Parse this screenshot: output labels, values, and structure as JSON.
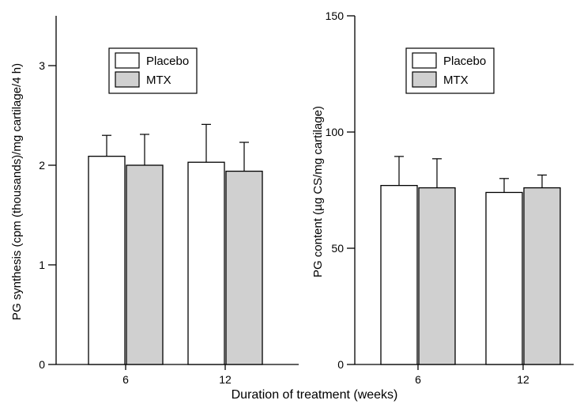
{
  "figure": {
    "xlabel": "Duration of treatment (weeks)"
  },
  "chart_data": [
    {
      "type": "bar",
      "title": "",
      "xlabel": "",
      "ylabel": "PG synthesis (cpm (thousands)/mg cartilage/4 h)",
      "categories": [
        "6",
        "12"
      ],
      "ylim": [
        0,
        3.5
      ],
      "yticks": [
        0,
        1,
        2,
        3
      ],
      "grid": false,
      "legend_position": "top-center",
      "series": [
        {
          "name": "Placebo",
          "color": "#ffffff",
          "values": [
            2.09,
            2.03
          ],
          "errors": [
            0.21,
            0.38
          ]
        },
        {
          "name": "MTX",
          "color": "#d0d0d0",
          "values": [
            2.0,
            1.94
          ],
          "errors": [
            0.31,
            0.29
          ]
        }
      ]
    },
    {
      "type": "bar",
      "title": "",
      "xlabel": "",
      "ylabel": "PG content (µg CS/mg cartilage)",
      "categories": [
        "6",
        "12"
      ],
      "ylim": [
        0,
        150
      ],
      "yticks": [
        0,
        50,
        100,
        150
      ],
      "grid": false,
      "legend_position": "top-center",
      "series": [
        {
          "name": "Placebo",
          "color": "#ffffff",
          "values": [
            77,
            74
          ],
          "errors": [
            12.5,
            6
          ]
        },
        {
          "name": "MTX",
          "color": "#d0d0d0",
          "values": [
            76,
            76
          ],
          "errors": [
            12.5,
            5.5
          ]
        }
      ]
    }
  ]
}
